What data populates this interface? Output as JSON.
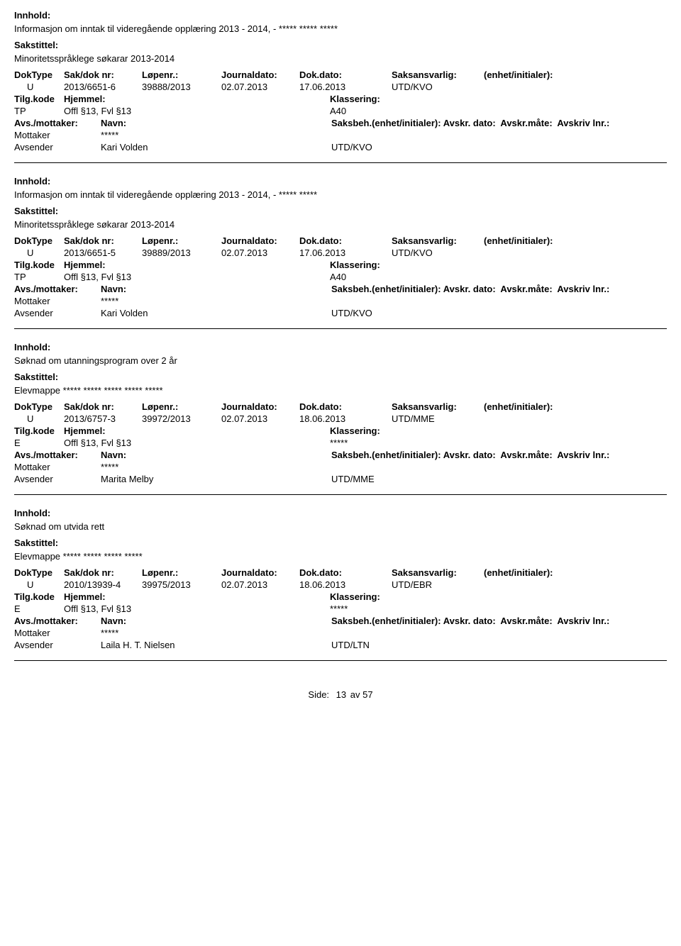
{
  "labels": {
    "innhold": "Innhold:",
    "sakstittel": "Sakstittel:",
    "doktype": "DokType",
    "saknr": "Sak/dok nr:",
    "lopenr": "Løpenr.:",
    "jdato": "Journaldato:",
    "ddato": "Dok.dato:",
    "saksansv": "Saksansvarlig:",
    "enhet": "(enhet/initialer):",
    "tilgkode": "Tilg.kode",
    "hjemmel": "Hjemmel:",
    "klassering": "Klassering:",
    "avsmot": "Avs./mottaker:",
    "navn": "Navn:",
    "saksbeh": "Saksbeh.(enhet/initialer):",
    "avskrdato": "Avskr. dato:",
    "avskrmate": "Avskr.måte:",
    "avskrivlnr": "Avskriv lnr.:",
    "mottaker": "Mottaker",
    "avsender": "Avsender",
    "side": "Side:",
    "av": "av"
  },
  "records": [
    {
      "innhold": "Informasjon om inntak til videregående opplæring 2013 - 2014, - ***** ***** *****",
      "sakstittel": "Minoritetsspråklege søkarar 2013-2014",
      "doktype": "U",
      "saknr": "2013/6651-6",
      "lopenr": "39888/2013",
      "jdato": "02.07.2013",
      "ddato": "17.06.2013",
      "saksansv": "UTD/KVO",
      "enhet": "",
      "tilgkode": "TP",
      "hjemmel": "Offl §13, Fvl §13",
      "klassering": "A40",
      "mottaker_navn": "*****",
      "avsender_navn": "Kari Volden",
      "avsender_unit": "UTD/KVO"
    },
    {
      "innhold": "Informasjon om inntak til videregående opplæring 2013 - 2014, - ***** *****",
      "sakstittel": "Minoritetsspråklege søkarar 2013-2014",
      "doktype": "U",
      "saknr": "2013/6651-5",
      "lopenr": "39889/2013",
      "jdato": "02.07.2013",
      "ddato": "17.06.2013",
      "saksansv": "UTD/KVO",
      "enhet": "",
      "tilgkode": "TP",
      "hjemmel": "Offl §13, Fvl §13",
      "klassering": "A40",
      "mottaker_navn": "*****",
      "avsender_navn": "Kari Volden",
      "avsender_unit": "UTD/KVO"
    },
    {
      "innhold": "Søknad om utanningsprogram over 2 år",
      "sakstittel": "Elevmappe ***** ***** ***** ***** *****",
      "doktype": "U",
      "saknr": "2013/6757-3",
      "lopenr": "39972/2013",
      "jdato": "02.07.2013",
      "ddato": "18.06.2013",
      "saksansv": "UTD/MME",
      "enhet": "",
      "tilgkode": "E",
      "hjemmel": "Offl §13, Fvl §13",
      "klassering": "*****",
      "mottaker_navn": "*****",
      "avsender_navn": "Marita Melby",
      "avsender_unit": "UTD/MME"
    },
    {
      "innhold": "Søknad om utvida rett",
      "sakstittel": "Elevmappe ***** ***** ***** *****",
      "doktype": "U",
      "saknr": "2010/13939-4",
      "lopenr": "39975/2013",
      "jdato": "02.07.2013",
      "ddato": "18.06.2013",
      "saksansv": "UTD/EBR",
      "enhet": "",
      "tilgkode": "E",
      "hjemmel": "Offl §13, Fvl §13",
      "klassering": "*****",
      "mottaker_navn": "*****",
      "avsender_navn": "Laila H. T. Nielsen",
      "avsender_unit": "UTD/LTN"
    }
  ],
  "footer": {
    "page_current": "13",
    "page_total": "57"
  }
}
